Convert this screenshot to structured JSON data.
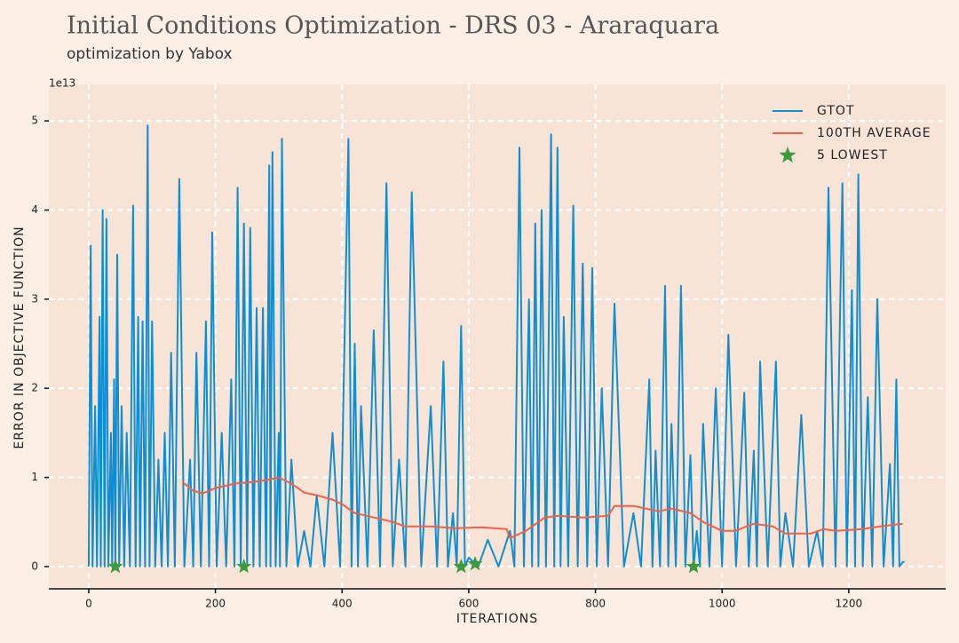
{
  "chart_data": {
    "type": "line",
    "title": "Initial Conditions Optimization - DRS 03 - Araraquara",
    "subtitle": "optimization by Yabox",
    "x_label": "ITERATIONS",
    "y_label": "ERROR IN OBJECTIVE FUNCTION",
    "y_offset_label": "1e13",
    "xlim": [
      -63,
      1353
    ],
    "ylim": [
      -0.25,
      5.41
    ],
    "xticks": [
      0,
      200,
      400,
      600,
      800,
      1000,
      1200
    ],
    "yticks": [
      0,
      1,
      2,
      3,
      4,
      5
    ],
    "grid": true,
    "legend": "upper right",
    "series": [
      {
        "name": "GTOT",
        "color": "#0f8fd3",
        "kind": "line",
        "x": [
          0,
          3,
          6,
          10,
          13,
          17,
          19,
          22,
          25,
          28,
          31,
          35,
          37,
          40,
          42,
          45,
          48,
          52,
          56,
          60,
          65,
          70,
          74,
          78,
          81,
          85,
          89,
          93,
          96,
          100,
          105,
          110,
          115,
          120,
          125,
          130,
          136,
          143,
          151,
          160,
          165,
          170,
          177,
          185,
          190,
          195,
          202,
          210,
          217,
          225,
          230,
          235,
          240,
          245,
          250,
          255,
          260,
          265,
          270,
          275,
          280,
          285,
          287,
          290,
          295,
          300,
          302,
          305,
          312,
          320,
          330,
          340,
          350,
          360,
          372,
          385,
          397,
          410,
          415,
          420,
          425,
          430,
          440,
          450,
          460,
          470,
          480,
          490,
          500,
          510,
          525,
          540,
          550,
          560,
          567,
          575,
          581,
          588,
          594,
          600,
          615,
          630,
          647,
          665,
          672,
          680,
          687,
          695,
          700,
          705,
          710,
          715,
          722,
          730,
          735,
          740,
          745,
          750,
          757,
          765,
          772,
          780,
          787,
          795,
          802,
          810,
          820,
          830,
          845,
          860,
          872,
          885,
          890,
          895,
          902,
          910,
          915,
          920,
          927,
          935,
          942,
          950,
          955,
          960,
          965,
          970,
          980,
          990,
          1000,
          1010,
          1022,
          1035,
          1042,
          1050,
          1055,
          1060,
          1072,
          1085,
          1092,
          1100,
          1112,
          1125,
          1137,
          1150,
          1159,
          1168,
          1179,
          1190,
          1197,
          1205,
          1210,
          1215,
          1222,
          1230,
          1237,
          1245,
          1255,
          1265,
          1270,
          1275,
          1280,
          1285,
          1288
        ],
        "values": [
          0,
          3.6,
          0,
          1.8,
          0,
          2.8,
          0,
          4.0,
          0,
          3.9,
          0,
          1.5,
          0,
          2.1,
          0,
          3.5,
          0,
          1.8,
          0,
          1.5,
          0,
          4.05,
          0,
          2.8,
          0,
          2.75,
          0,
          4.95,
          0,
          2.75,
          0,
          1.2,
          0,
          1.5,
          0,
          2.4,
          0,
          4.35,
          0,
          1.2,
          0,
          2.4,
          0,
          2.75,
          0,
          3.75,
          0,
          1.5,
          0,
          2.1,
          0,
          4.25,
          0,
          3.85,
          0,
          3.8,
          0,
          2.9,
          0,
          2.9,
          0,
          4.5,
          0,
          4.65,
          0,
          1.5,
          0,
          4.8,
          0,
          1.2,
          0,
          0.4,
          0,
          0.8,
          0,
          1.5,
          0,
          4.8,
          0,
          2.5,
          0,
          1.8,
          0,
          2.65,
          0,
          4.3,
          0,
          1.2,
          0,
          4.2,
          0,
          1.8,
          0,
          2.3,
          0,
          0.6,
          0,
          2.7,
          0,
          0.1,
          0,
          0.3,
          0,
          0.4,
          0,
          4.7,
          0,
          3.0,
          0,
          3.85,
          0,
          4.0,
          0,
          4.85,
          0,
          4.7,
          0,
          2.8,
          0,
          4.05,
          0,
          3.4,
          0,
          3.35,
          0,
          2.0,
          0,
          2.95,
          0,
          0.6,
          0,
          2.1,
          0,
          1.3,
          0,
          3.15,
          0,
          1.6,
          0,
          3.15,
          0,
          1.25,
          0,
          0.4,
          0,
          1.6,
          0,
          2.0,
          0,
          2.6,
          0,
          1.95,
          0,
          1.3,
          0,
          2.3,
          0,
          2.3,
          0,
          0.6,
          0,
          1.7,
          0,
          0.4,
          0,
          4.25,
          0,
          4.3,
          0,
          3.1,
          0,
          4.4,
          0,
          1.9,
          0,
          3.0,
          0,
          1.15,
          0,
          2.1,
          0,
          0.05,
          0.05
        ]
      },
      {
        "name": "100TH AVERAGE",
        "color": "#f0604a",
        "kind": "line",
        "x": [
          148,
          165,
          180,
          200,
          230,
          260,
          280,
          300,
          320,
          340,
          360,
          385,
          400,
          420,
          450,
          480,
          500,
          540,
          580,
          620,
          660,
          665,
          690,
          720,
          740,
          780,
          820,
          830,
          860,
          900,
          920,
          950,
          970,
          1000,
          1020,
          1050,
          1080,
          1100,
          1140,
          1160,
          1180,
          1220,
          1250,
          1285
        ],
        "values": [
          0.95,
          0.85,
          0.82,
          0.88,
          0.93,
          0.95,
          0.97,
          1.0,
          0.93,
          0.83,
          0.8,
          0.75,
          0.7,
          0.6,
          0.55,
          0.5,
          0.45,
          0.45,
          0.43,
          0.44,
          0.42,
          0.32,
          0.4,
          0.55,
          0.57,
          0.55,
          0.57,
          0.68,
          0.68,
          0.62,
          0.65,
          0.6,
          0.5,
          0.4,
          0.4,
          0.48,
          0.45,
          0.37,
          0.37,
          0.42,
          0.4,
          0.42,
          0.45,
          0.48
        ]
      },
      {
        "name": "5 LOWEST",
        "color": "#3d9a3d",
        "kind": "star",
        "x": [
          42,
          245,
          588,
          610,
          955
        ],
        "values": [
          0,
          0,
          0,
          0.03,
          0
        ]
      }
    ]
  }
}
